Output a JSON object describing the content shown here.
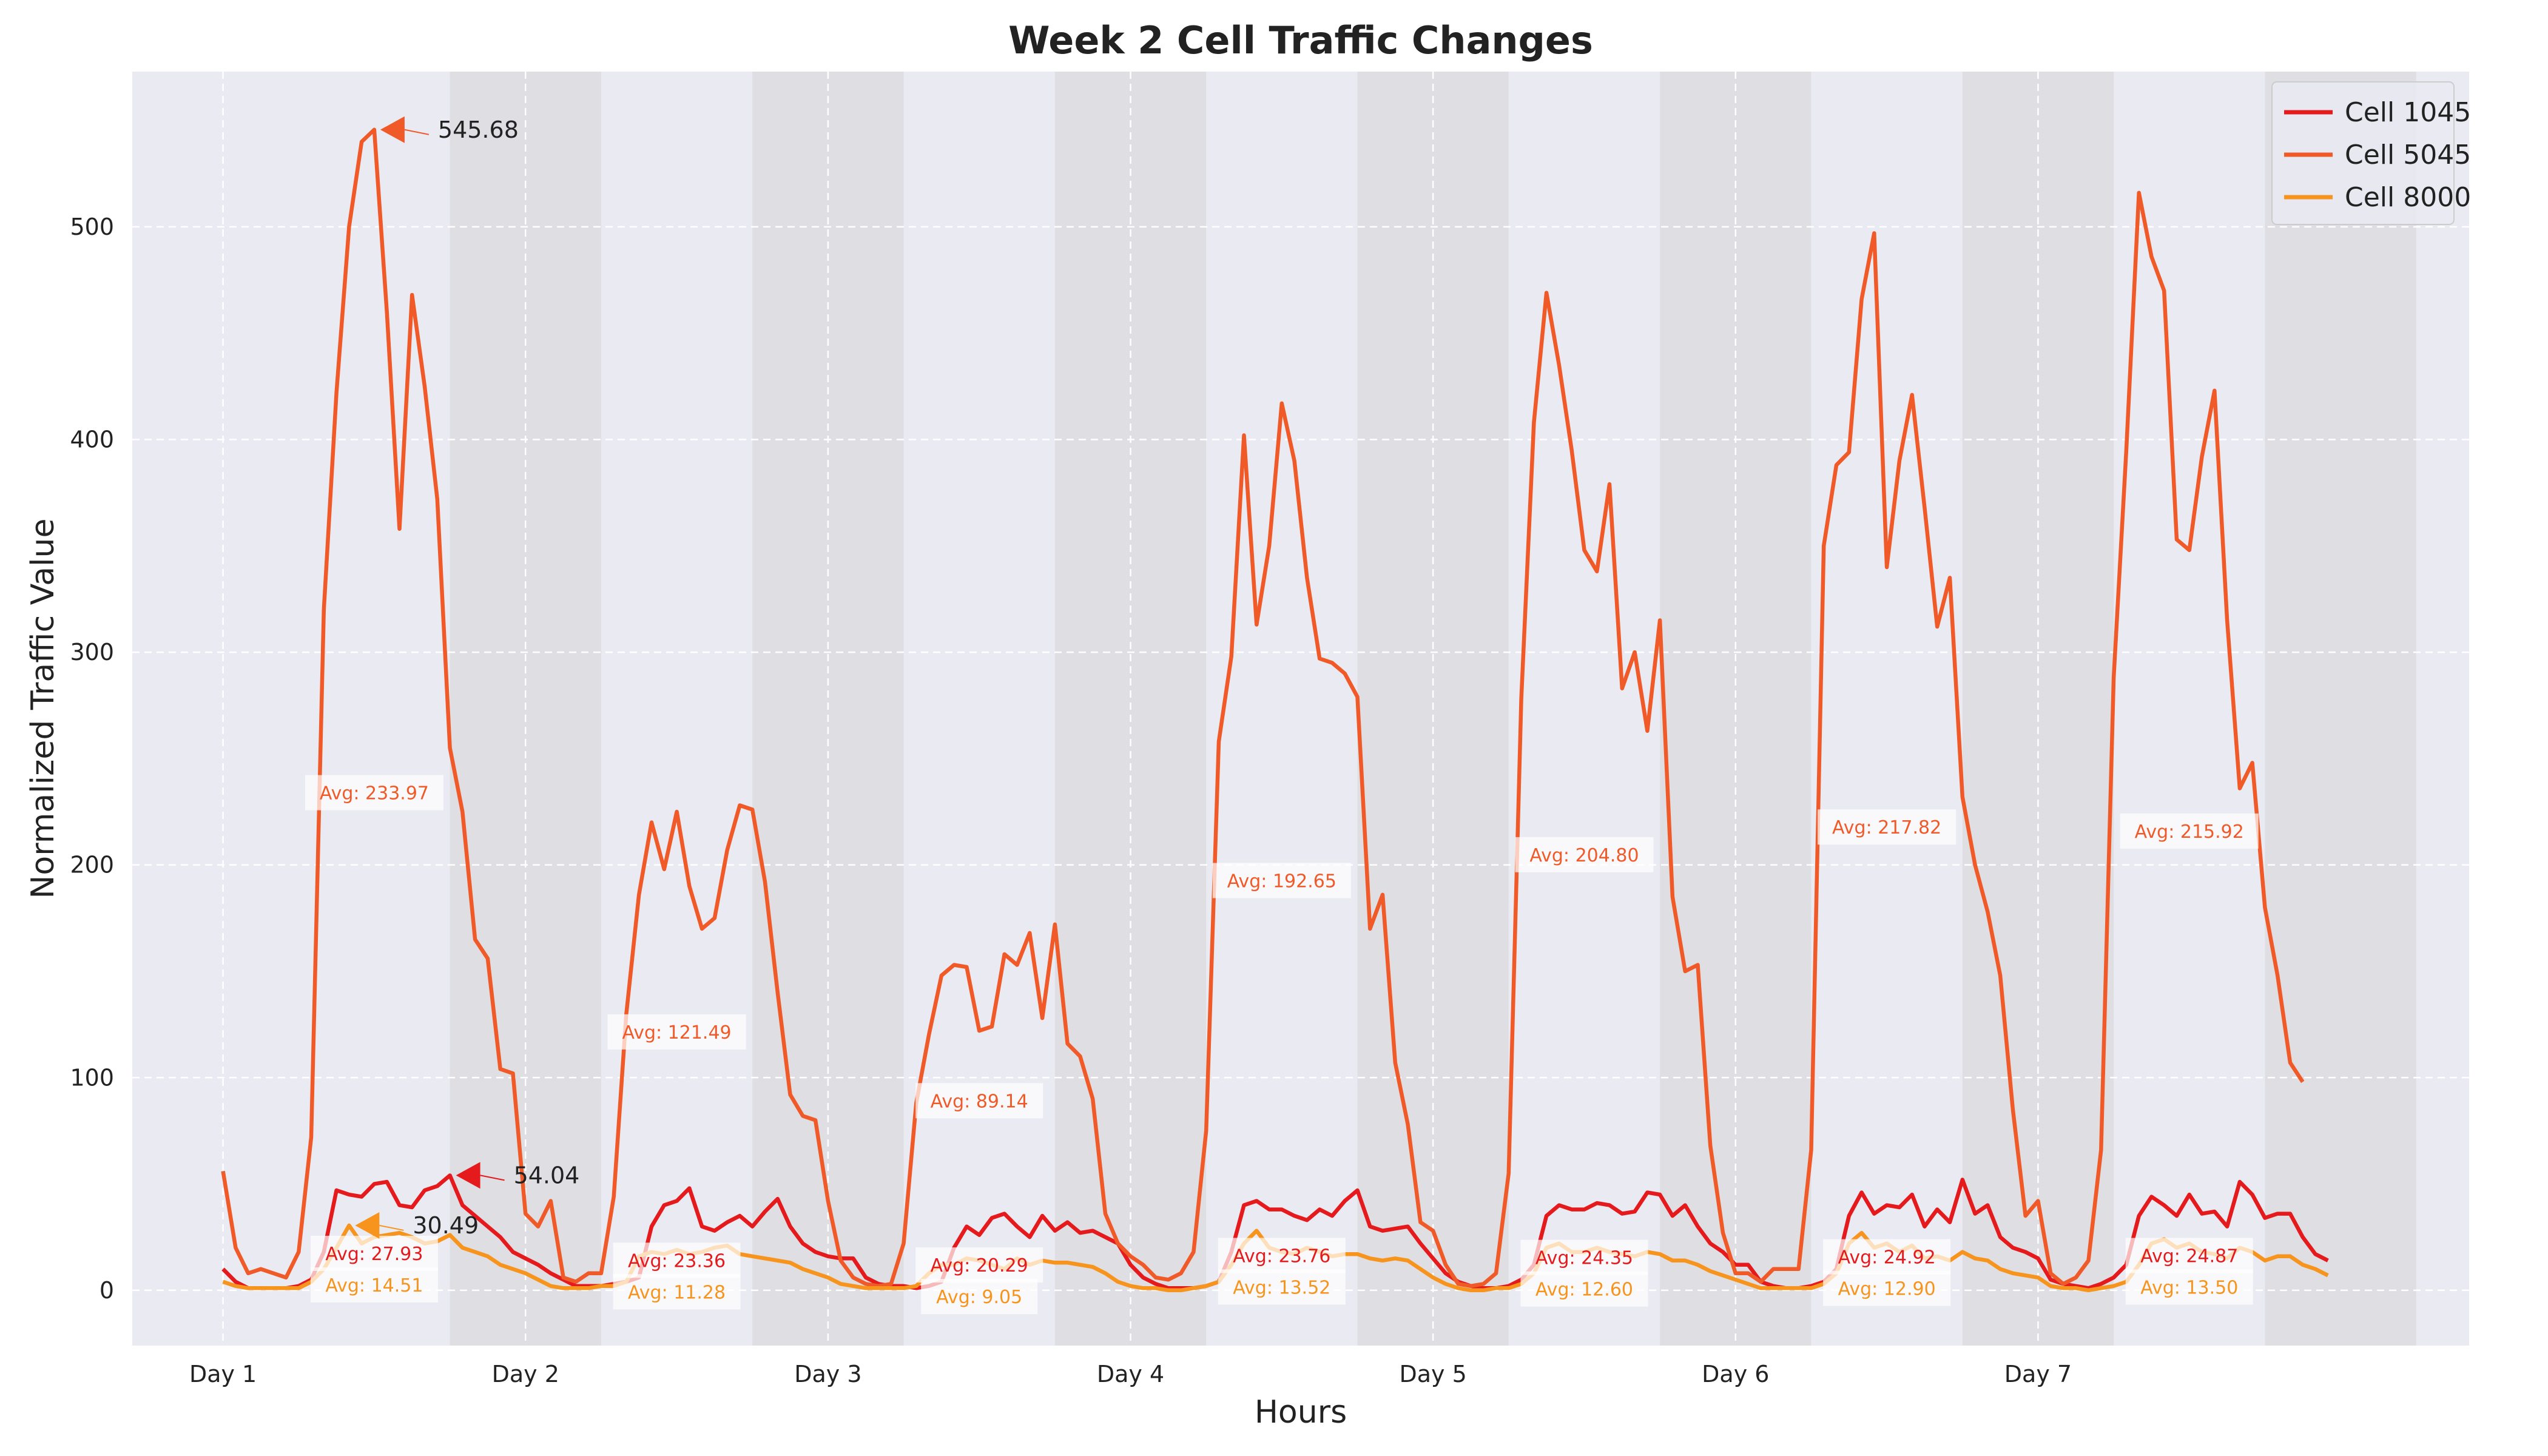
{
  "chart_data": {
    "type": "line",
    "title": "Week 2 Cell Traffic Changes",
    "xlabel": "Hours",
    "ylabel": "Normalized Traffic Value",
    "xlim": [
      -7.2,
      178.2
    ],
    "ylim": [
      -26,
      573
    ],
    "x_ticks": [
      {
        "x": 0,
        "label": "Day 1"
      },
      {
        "x": 24,
        "label": "Day 2"
      },
      {
        "x": 48,
        "label": "Day 3"
      },
      {
        "x": 72,
        "label": "Day 4"
      },
      {
        "x": 96,
        "label": "Day 5"
      },
      {
        "x": 120,
        "label": "Day 6"
      },
      {
        "x": 144,
        "label": "Day 7"
      }
    ],
    "y_ticks": [
      0,
      100,
      200,
      300,
      400,
      500
    ],
    "grid": true,
    "legend": "top-right",
    "shaded_regions": [
      [
        18,
        30
      ],
      [
        42,
        54
      ],
      [
        66,
        78
      ],
      [
        90,
        102
      ],
      [
        114,
        126
      ],
      [
        138,
        150
      ],
      [
        162,
        174
      ]
    ],
    "series": [
      {
        "name": "Cell 1045",
        "color": "#e41a1c",
        "values": [
          10,
          4,
          1,
          1,
          1,
          1,
          2,
          5,
          18,
          47,
          45,
          44,
          50,
          51,
          40,
          39,
          47,
          49,
          54,
          40,
          35,
          30,
          25,
          18,
          15,
          12,
          8,
          5,
          2,
          2,
          2,
          3,
          4,
          6,
          30,
          40,
          42,
          48,
          30,
          28,
          32,
          35,
          30,
          37,
          43,
          30,
          22,
          18,
          16,
          15,
          15,
          6,
          3,
          2,
          2,
          1,
          2,
          4,
          20,
          30,
          26,
          34,
          36,
          30,
          25,
          35,
          28,
          32,
          27,
          28,
          25,
          22,
          12,
          6,
          3,
          1,
          1,
          1,
          2,
          4,
          18,
          40,
          42,
          38,
          38,
          35,
          33,
          38,
          35,
          42,
          47,
          30,
          28,
          29,
          30,
          22,
          15,
          8,
          4,
          2,
          1,
          1,
          2,
          5,
          12,
          35,
          40,
          38,
          38,
          41,
          40,
          36,
          37,
          46,
          45,
          35,
          40,
          30,
          22,
          18,
          12,
          12,
          4,
          2,
          1,
          1,
          2,
          4,
          10,
          35,
          46,
          36,
          40,
          39,
          45,
          30,
          38,
          32,
          52,
          36,
          40,
          25,
          20,
          18,
          15,
          5,
          3,
          2,
          1,
          3,
          6,
          12,
          35,
          44,
          40,
          35,
          45,
          36,
          37,
          30,
          51,
          45,
          34,
          36,
          36,
          25,
          17,
          14
        ],
        "averages": [
          27.93,
          23.36,
          20.29,
          23.76,
          24.35,
          24.92,
          24.87
        ]
      },
      {
        "name": "Cell 5045",
        "color": "#f05a28",
        "values": [
          56,
          20,
          8,
          10,
          8,
          6,
          18,
          72,
          320,
          422,
          500,
          540,
          545.68,
          460,
          358,
          468,
          425,
          372,
          255,
          225,
          165,
          156,
          104,
          102,
          36,
          30,
          42,
          6,
          4,
          8,
          8,
          44,
          130,
          186,
          220,
          198,
          225,
          190,
          170,
          175,
          207,
          228,
          226,
          192,
          140,
          92,
          82,
          80,
          42,
          14,
          6,
          3,
          2,
          3,
          22,
          88,
          120,
          148,
          153,
          152,
          122,
          124,
          158,
          153,
          168,
          128,
          172,
          116,
          110,
          90,
          36,
          22,
          16,
          12,
          6,
          5,
          8,
          18,
          75,
          258,
          298,
          402,
          313,
          350,
          417,
          390,
          335,
          297,
          295,
          290,
          279,
          170,
          186,
          107,
          78,
          32,
          28,
          12,
          3,
          2,
          3,
          8,
          55,
          278,
          408,
          469,
          435,
          395,
          348,
          338,
          379,
          283,
          300,
          263,
          315,
          185,
          150,
          153,
          68,
          27,
          8,
          8,
          4,
          10,
          10,
          10,
          66,
          350,
          388,
          394,
          466,
          497,
          340,
          390,
          421,
          368,
          312,
          335,
          232,
          200,
          178,
          148,
          85,
          35,
          42,
          8,
          3,
          6,
          14,
          66,
          288,
          395,
          516,
          486,
          470,
          353,
          348,
          392,
          423,
          315,
          236,
          248,
          180,
          148,
          107,
          98
        ],
        "averages": [
          233.97,
          121.49,
          89.14,
          192.65,
          204.8,
          217.82,
          215.92
        ]
      },
      {
        "name": "Cell 8000",
        "color": "#f7941d",
        "values": [
          4,
          2,
          1,
          1,
          1,
          1,
          1,
          4,
          10,
          20,
          30.49,
          22,
          25,
          26,
          27,
          25,
          22,
          23,
          26,
          20,
          18,
          16,
          12,
          10,
          8,
          5,
          2,
          1,
          1,
          1,
          2,
          2,
          4,
          16,
          18,
          17,
          19,
          17,
          18,
          20,
          21,
          17,
          16,
          15,
          14,
          13,
          10,
          8,
          6,
          3,
          2,
          1,
          1,
          1,
          1,
          2,
          8,
          12,
          12,
          15,
          14,
          12,
          10,
          15,
          12,
          14,
          13,
          13,
          12,
          11,
          8,
          4,
          2,
          1,
          1,
          0,
          0,
          1,
          2,
          4,
          12,
          22,
          28,
          20,
          18,
          17,
          20,
          18,
          16,
          17,
          17,
          15,
          14,
          15,
          14,
          10,
          6,
          3,
          1,
          0,
          0,
          1,
          1,
          3,
          8,
          20,
          22,
          18,
          18,
          20,
          18,
          17,
          16,
          18,
          17,
          14,
          14,
          12,
          9,
          7,
          5,
          3,
          1,
          1,
          1,
          1,
          1,
          3,
          8,
          22,
          27,
          20,
          22,
          18,
          21,
          15,
          16,
          14,
          18,
          15,
          14,
          10,
          8,
          7,
          6,
          2,
          1,
          1,
          0,
          1,
          2,
          4,
          12,
          22,
          24,
          20,
          22,
          18,
          17,
          15,
          20,
          18,
          14,
          16,
          16,
          12,
          10,
          7
        ],
        "averages": [
          14.51,
          11.28,
          9.05,
          13.52,
          12.6,
          12.9,
          13.5
        ]
      }
    ],
    "annotations": [
      {
        "text": "545.68",
        "x": 12,
        "y": 545.68,
        "color": "#f05a28"
      },
      {
        "text": "54.04",
        "x": 18,
        "y": 54.04,
        "color": "#e41a1c"
      },
      {
        "text": "30.49",
        "x": 10,
        "y": 30.49,
        "color": "#f7941d"
      }
    ]
  }
}
